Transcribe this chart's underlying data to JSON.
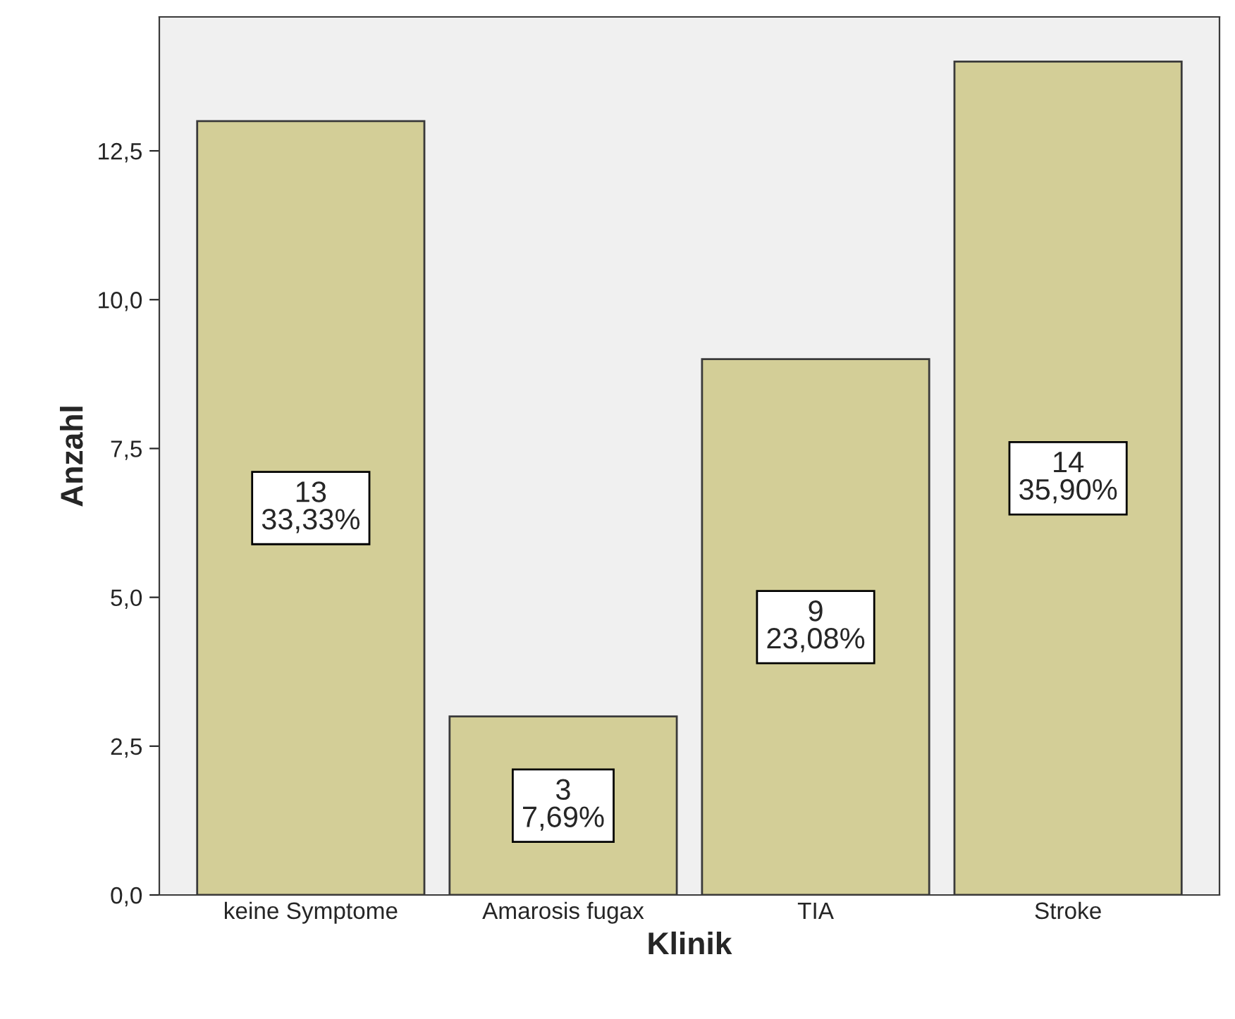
{
  "chart_data": {
    "type": "bar",
    "xlabel": "Klinik",
    "ylabel": "Anzahl",
    "categories": [
      "keine Symptome",
      "Amarosis fugax",
      "TIA",
      "Stroke"
    ],
    "values": [
      13,
      3,
      9,
      14
    ],
    "value_labels": [
      "13\n33,33%",
      "3\n7,69%",
      "9\n23,08%",
      "14\n35,90%"
    ],
    "color": "#d3ce97",
    "ylim": [
      0,
      14.75
    ],
    "yticks": [
      {
        "value": 0,
        "label": "0,0"
      },
      {
        "value": 2.5,
        "label": "2,5"
      },
      {
        "value": 5,
        "label": "5,0"
      },
      {
        "value": 7.5,
        "label": "7,5"
      },
      {
        "value": 10,
        "label": "10,0"
      },
      {
        "value": 12.5,
        "label": "12,5"
      }
    ],
    "grid": false,
    "legend": false
  }
}
